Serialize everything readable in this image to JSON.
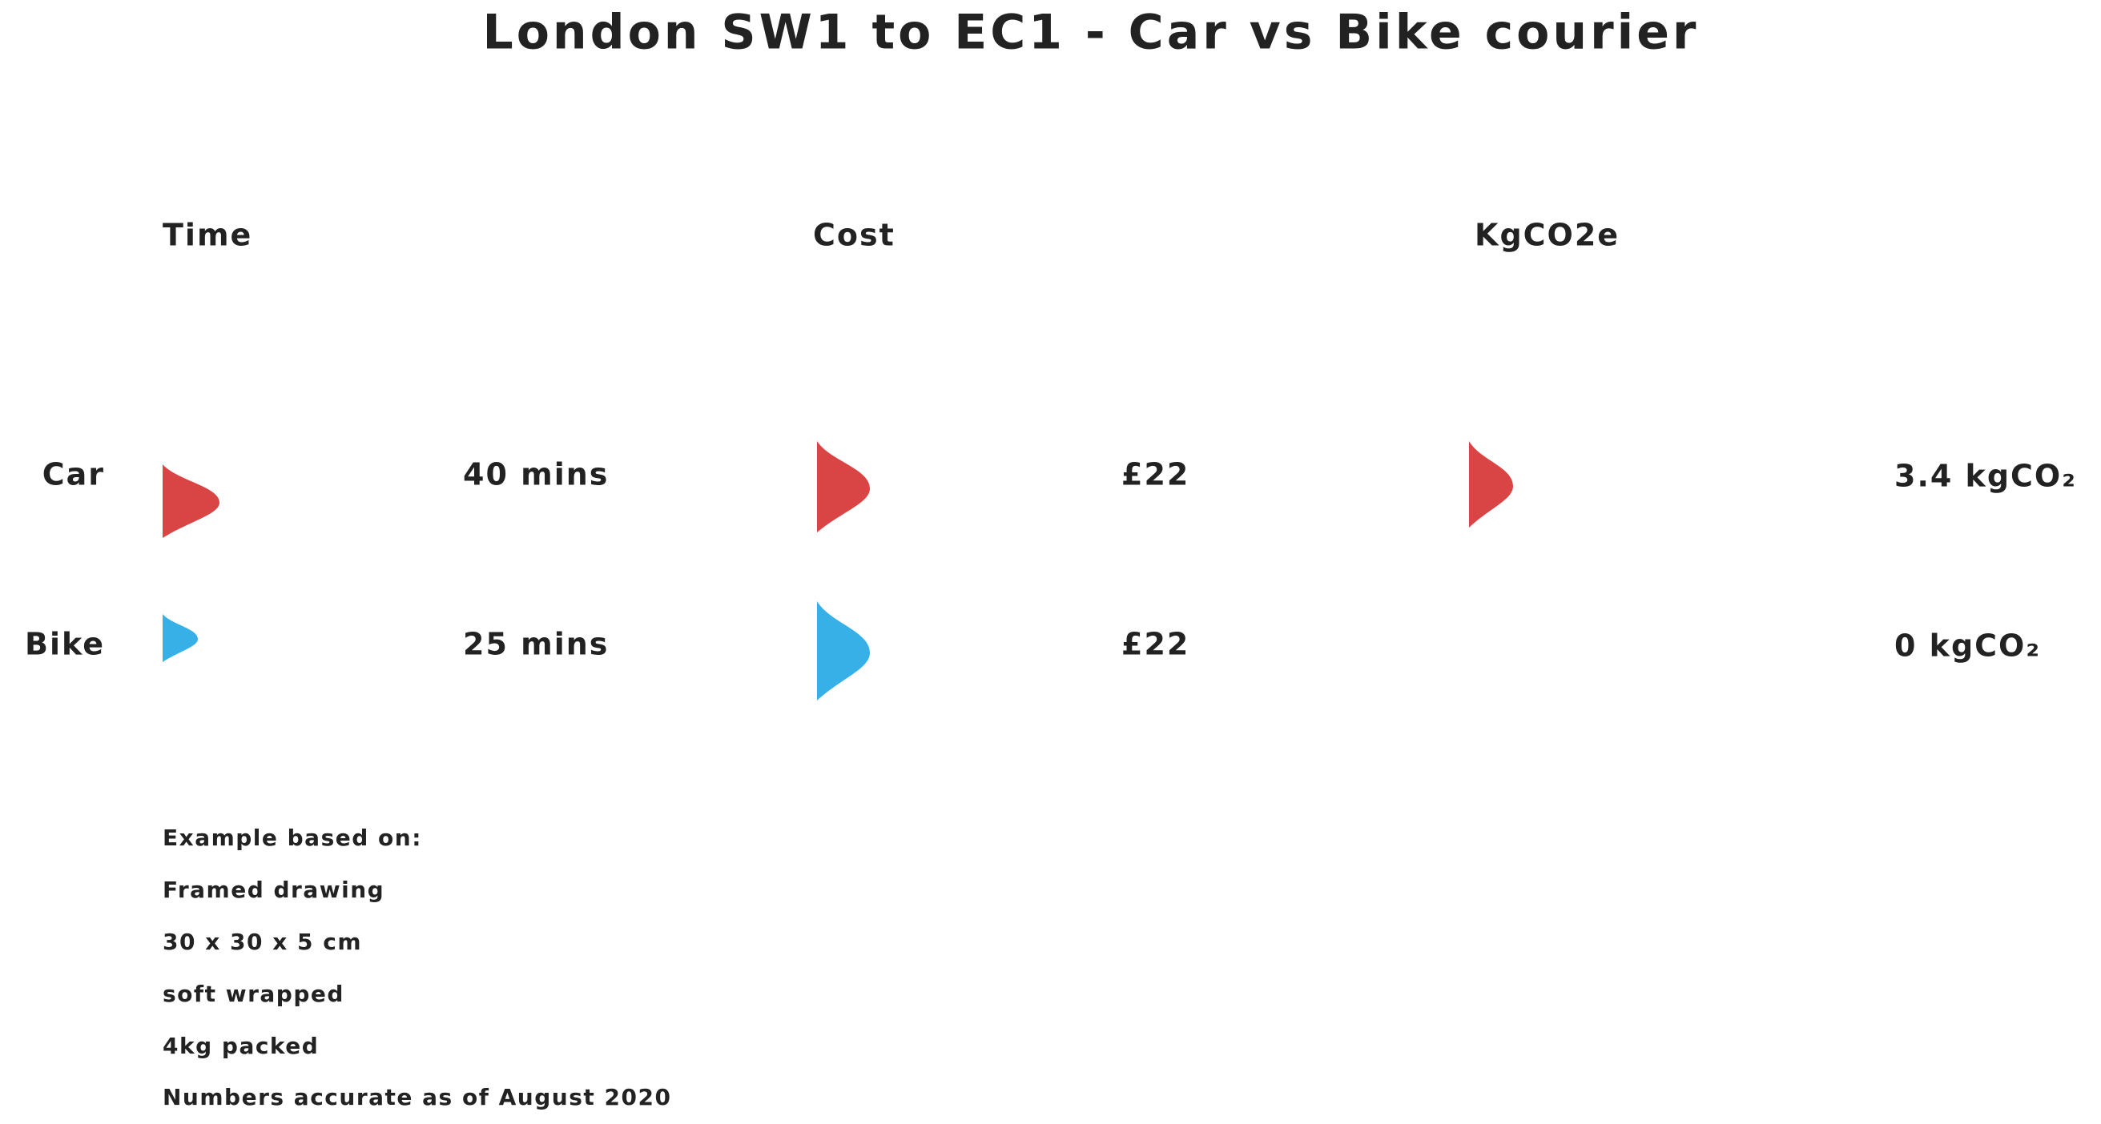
{
  "title": "London SW1 to EC1 - Car vs Bike courier",
  "columns": [
    "Time",
    "Cost",
    "KgCO2e"
  ],
  "rows": [
    {
      "label": "Car",
      "cells": [
        "40 mins",
        "£22",
        "3.4 kgCO₂"
      ]
    },
    {
      "label": "Bike",
      "cells": [
        "25 mins",
        "£22",
        "0 kgCO₂"
      ]
    }
  ],
  "notes": [
    "Example based on:",
    "Framed drawing",
    "30 x 30 x 5 cm",
    "soft wrapped",
    "4kg packed",
    "Numbers accurate as of August 2020"
  ]
}
